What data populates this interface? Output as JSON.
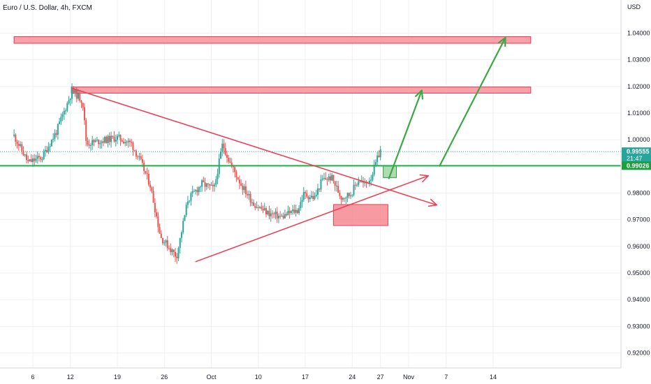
{
  "colors": {
    "up": "#26a69a",
    "down": "#ef5350",
    "grid": "#eef0f3",
    "axis_line": "#d1d4dc",
    "zone_fill": "#f7a1a8",
    "zone_stroke": "#e53950",
    "trend_line": "#ef3b4f",
    "level_line": "#21b24a",
    "arrow": "#3aa845",
    "label_green": "#1e9e3e",
    "current_dot": "#26a69a"
  },
  "chart_data": {
    "type": "candlestick",
    "title": "Euro / U.S. Dollar, 4h, FXCM",
    "currency_label": "USD",
    "ylim": [
      0.915,
      1.052
    ],
    "y_ticks": [
      "1.04000",
      "1.03000",
      "1.02000",
      "1.01000",
      "1.00000",
      "0.99000",
      "0.98000",
      "0.97000",
      "0.96000",
      "0.95000",
      "0.94000",
      "0.93000",
      "0.92000"
    ],
    "y_tick_values": [
      1.04,
      1.03,
      1.02,
      1.01,
      1.0,
      0.99,
      0.98,
      0.97,
      0.96,
      0.95,
      0.94,
      0.93,
      0.92
    ],
    "x_range_days": [
      0,
      46
    ],
    "x_ticks": [
      {
        "label": "6",
        "day": 2
      },
      {
        "label": "12",
        "day": 6
      },
      {
        "label": "19",
        "day": 11
      },
      {
        "label": "26",
        "day": 16
      },
      {
        "label": "Oct",
        "day": 21
      },
      {
        "label": "10",
        "day": 26
      },
      {
        "label": "17",
        "day": 31
      },
      {
        "label": "24",
        "day": 36
      },
      {
        "label": "27",
        "day": 39
      },
      {
        "label": "Nov",
        "day": 42
      },
      {
        "label": "7",
        "day": 46
      },
      {
        "label": "14",
        "day": 51
      }
    ],
    "price_labels": [
      {
        "value": 0.99555,
        "text": "0.99555",
        "sub": "21:47",
        "kind": "current"
      },
      {
        "value": 0.99026,
        "text": "0.99026",
        "sub": "",
        "kind": "level"
      }
    ],
    "anchors": [
      {
        "day": 0.0,
        "price": 1.0015
      },
      {
        "day": 1.5,
        "price": 0.9915
      },
      {
        "day": 3.0,
        "price": 0.9935
      },
      {
        "day": 4.5,
        "price": 1.003
      },
      {
        "day": 6.2,
        "price": 1.0185
      },
      {
        "day": 7.3,
        "price": 1.0145
      },
      {
        "day": 7.7,
        "price": 0.9985
      },
      {
        "day": 9.5,
        "price": 0.9998
      },
      {
        "day": 11.0,
        "price": 1.0008
      },
      {
        "day": 12.5,
        "price": 0.9985
      },
      {
        "day": 13.5,
        "price": 0.9915
      },
      {
        "day": 14.5,
        "price": 0.983
      },
      {
        "day": 15.6,
        "price": 0.9635
      },
      {
        "day": 17.3,
        "price": 0.9562
      },
      {
        "day": 18.5,
        "price": 0.9775
      },
      {
        "day": 20.0,
        "price": 0.9835
      },
      {
        "day": 21.3,
        "price": 0.9815
      },
      {
        "day": 22.2,
        "price": 0.9985
      },
      {
        "day": 22.9,
        "price": 0.992
      },
      {
        "day": 24.2,
        "price": 0.983
      },
      {
        "day": 25.5,
        "price": 0.976
      },
      {
        "day": 27.0,
        "price": 0.9725
      },
      {
        "day": 28.5,
        "price": 0.971
      },
      {
        "day": 29.6,
        "price": 0.973
      },
      {
        "day": 30.2,
        "price": 0.9735
      },
      {
        "day": 30.8,
        "price": 0.9795
      },
      {
        "day": 32.0,
        "price": 0.9782
      },
      {
        "day": 32.8,
        "price": 0.985
      },
      {
        "day": 33.8,
        "price": 0.9858
      },
      {
        "day": 34.8,
        "price": 0.9785
      },
      {
        "day": 35.8,
        "price": 0.9795
      },
      {
        "day": 36.7,
        "price": 0.9852
      },
      {
        "day": 37.3,
        "price": 0.983
      },
      {
        "day": 38.0,
        "price": 0.986
      },
      {
        "day": 38.6,
        "price": 0.992
      },
      {
        "day": 39.0,
        "price": 0.9962
      }
    ],
    "resistance_zones": [
      {
        "day_start": 0,
        "day_end": 55,
        "price_low": 1.0362,
        "price_high": 1.0387
      },
      {
        "day_start": 6.1,
        "day_end": 55,
        "price_low": 1.0175,
        "price_high": 1.0198
      }
    ],
    "demand_zones": [
      {
        "day_start": 34.0,
        "day_end": 39.8,
        "price_low": 0.9678,
        "price_high": 0.9757,
        "color": "red"
      },
      {
        "day_start": 39.3,
        "day_end": 40.7,
        "price_low": 0.9858,
        "price_high": 0.9902,
        "color": "green"
      }
    ],
    "horizontal_levels": [
      {
        "price": 0.99026
      }
    ],
    "trend_lines": [
      {
        "from": {
          "day": 6.2,
          "price": 1.0193
        },
        "to": {
          "day": 45.0,
          "price": 0.9755
        },
        "arrowhead": true
      },
      {
        "from": {
          "day": 19.3,
          "price": 0.9542
        },
        "to": {
          "day": 44.1,
          "price": 0.9865
        },
        "arrowhead": true
      }
    ],
    "forecast_arrows": [
      {
        "from": {
          "day": 39.9,
          "price": 0.9855
        },
        "to": {
          "day": 43.4,
          "price": 1.0185
        }
      },
      {
        "from": {
          "day": 45.3,
          "price": 0.9902
        },
        "to": {
          "day": 52.3,
          "price": 1.0383
        }
      }
    ],
    "grid": true
  }
}
